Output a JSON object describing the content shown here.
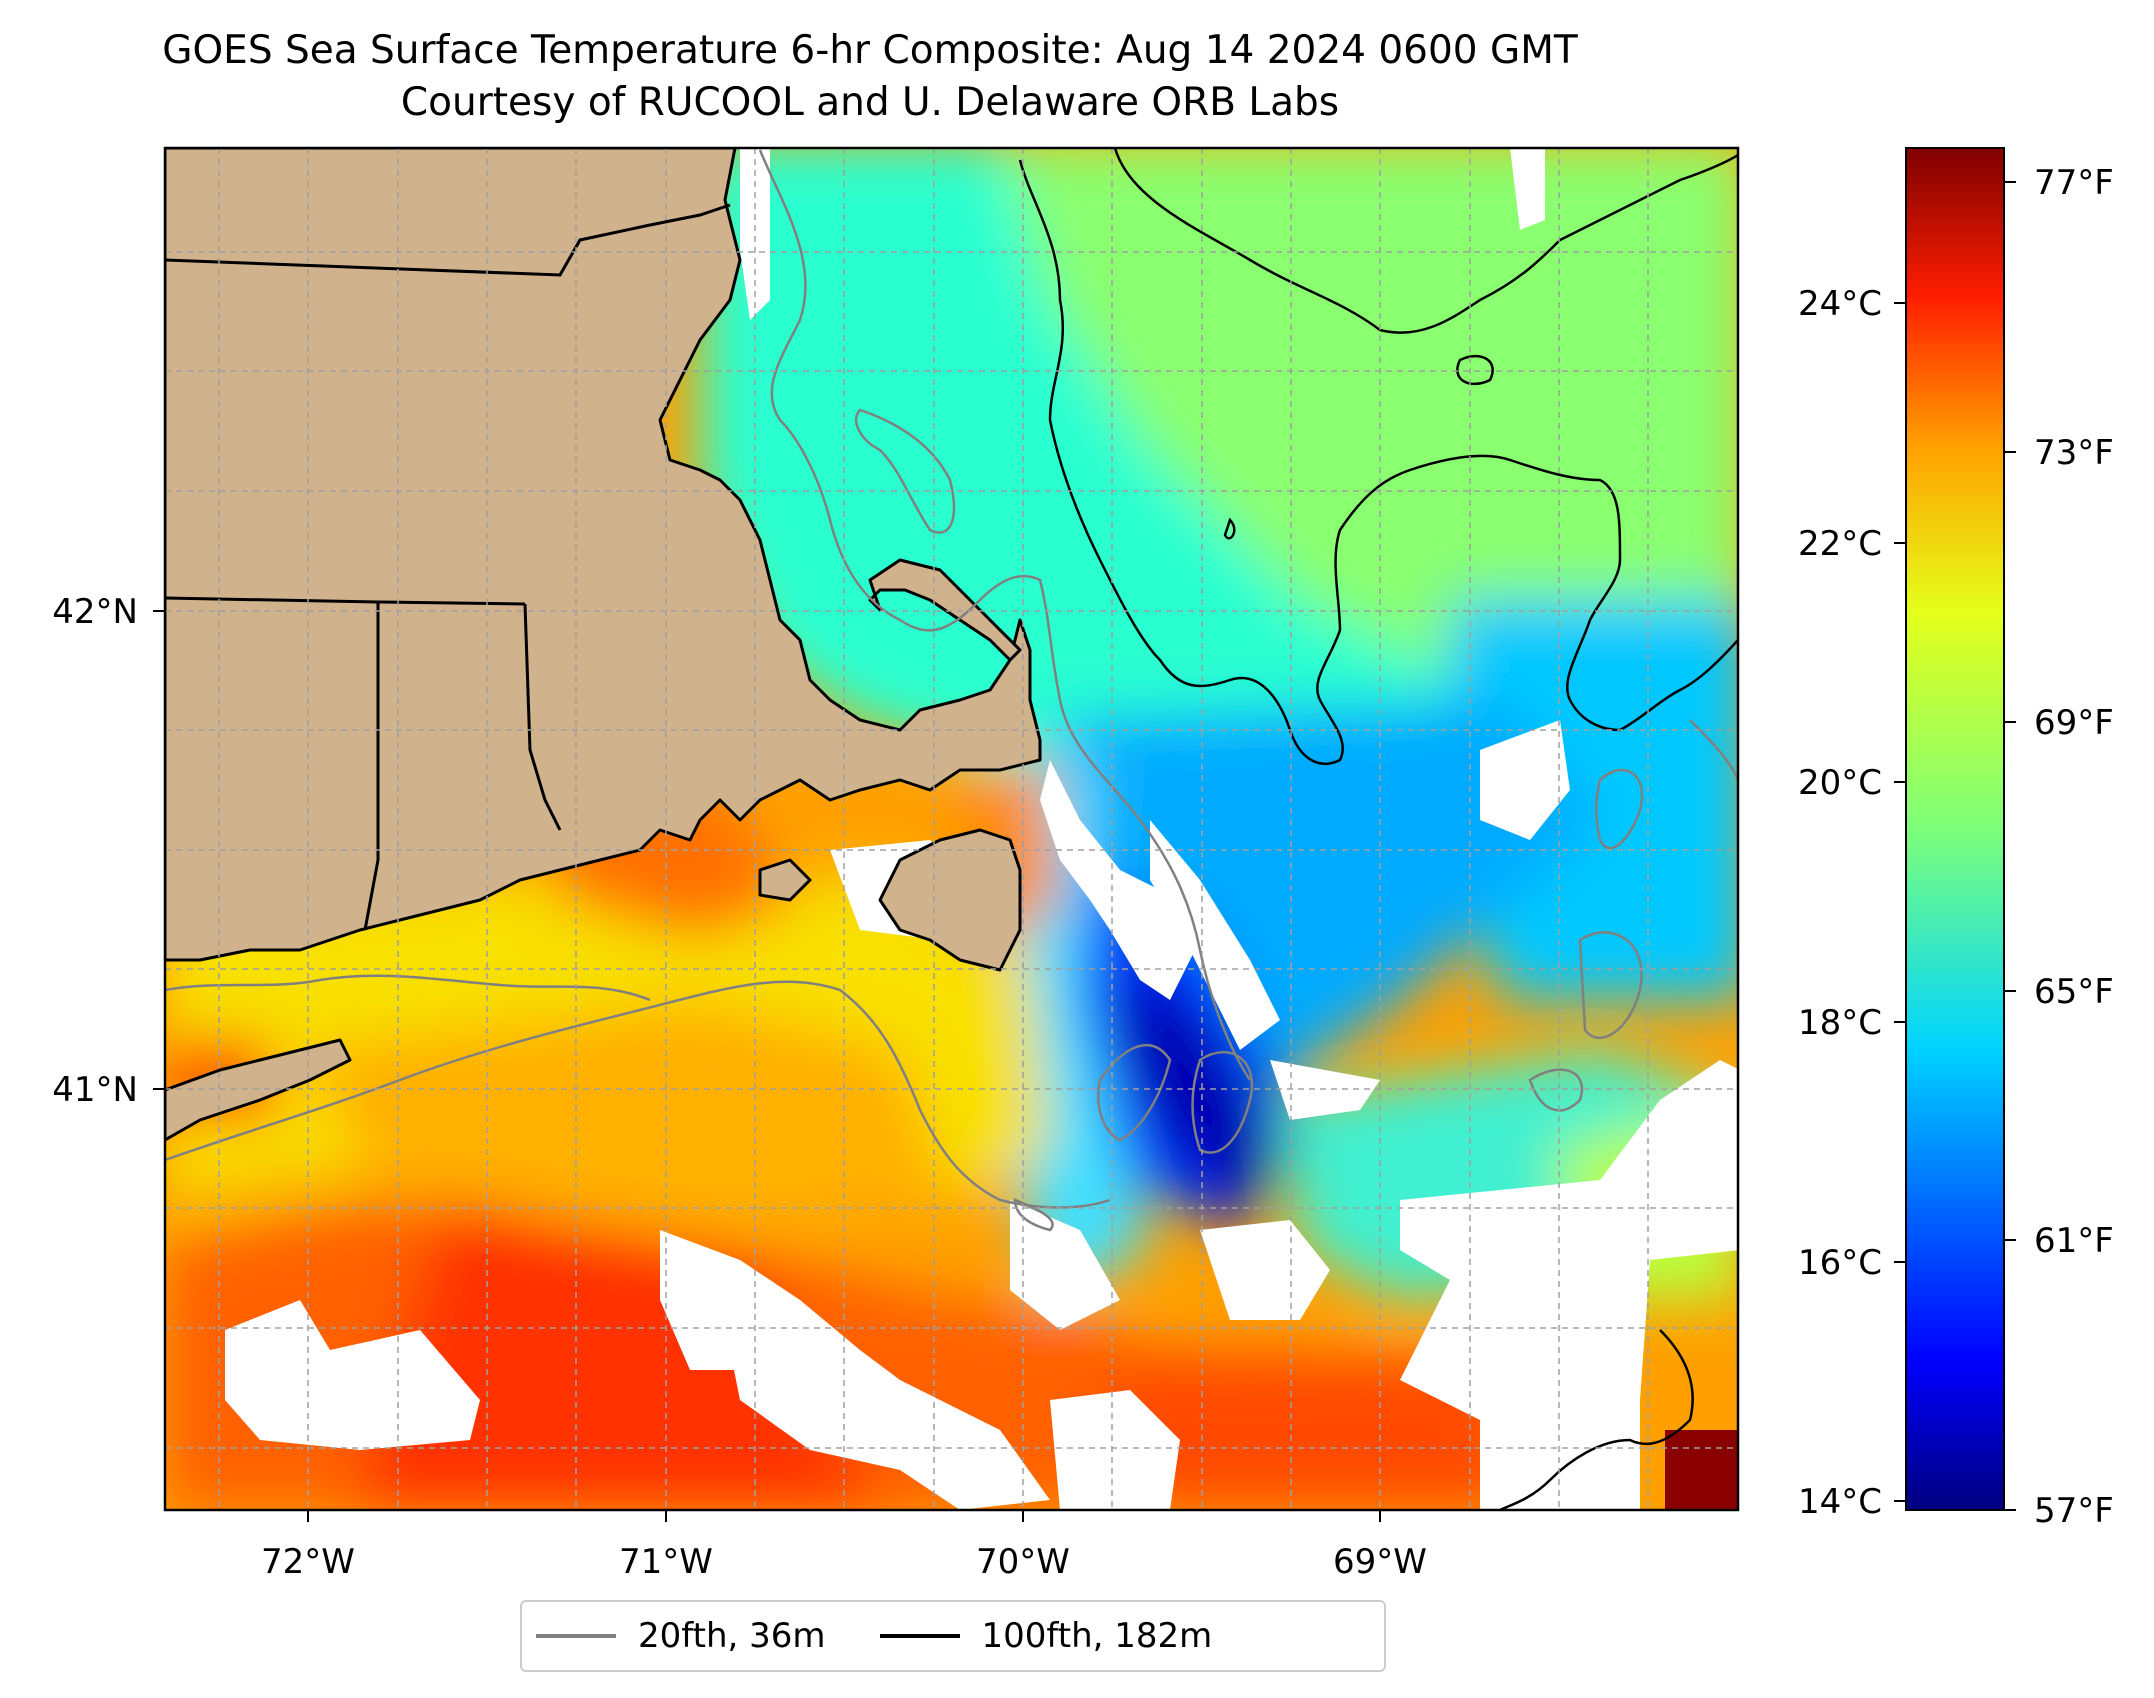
{
  "title": {
    "line1": "GOES Sea Surface Temperature 6-hr Composite: Aug 14 2024 0600 GMT",
    "line2": "Courtesy of RUCOOL and U. Delaware ORB Labs"
  },
  "map": {
    "longitude_labels": [
      "72°W",
      "71°W",
      "70°W",
      "69°W"
    ],
    "latitude_labels": [
      "42°N",
      "41°N"
    ],
    "colors": {
      "land": "#d0b28c",
      "coastline": "#000000",
      "isobath_20fth": "#808080",
      "isobath_100fth": "#000000",
      "no_data": "#ffffff",
      "grid": "#a0a0a0"
    }
  },
  "colorbar": {
    "celsius_labels": [
      "24°C",
      "22°C",
      "20°C",
      "18°C",
      "16°C",
      "14°C"
    ],
    "fahrenheit_labels": [
      "77°F",
      "73°F",
      "69°F",
      "65°F",
      "61°F",
      "57°F"
    ],
    "range_f": [
      57,
      78
    ],
    "colormap": "jet"
  },
  "legend": {
    "items": [
      {
        "label": "20fth, 36m",
        "color": "#808080"
      },
      {
        "label": "100fth, 182m",
        "color": "#000000"
      }
    ]
  }
}
